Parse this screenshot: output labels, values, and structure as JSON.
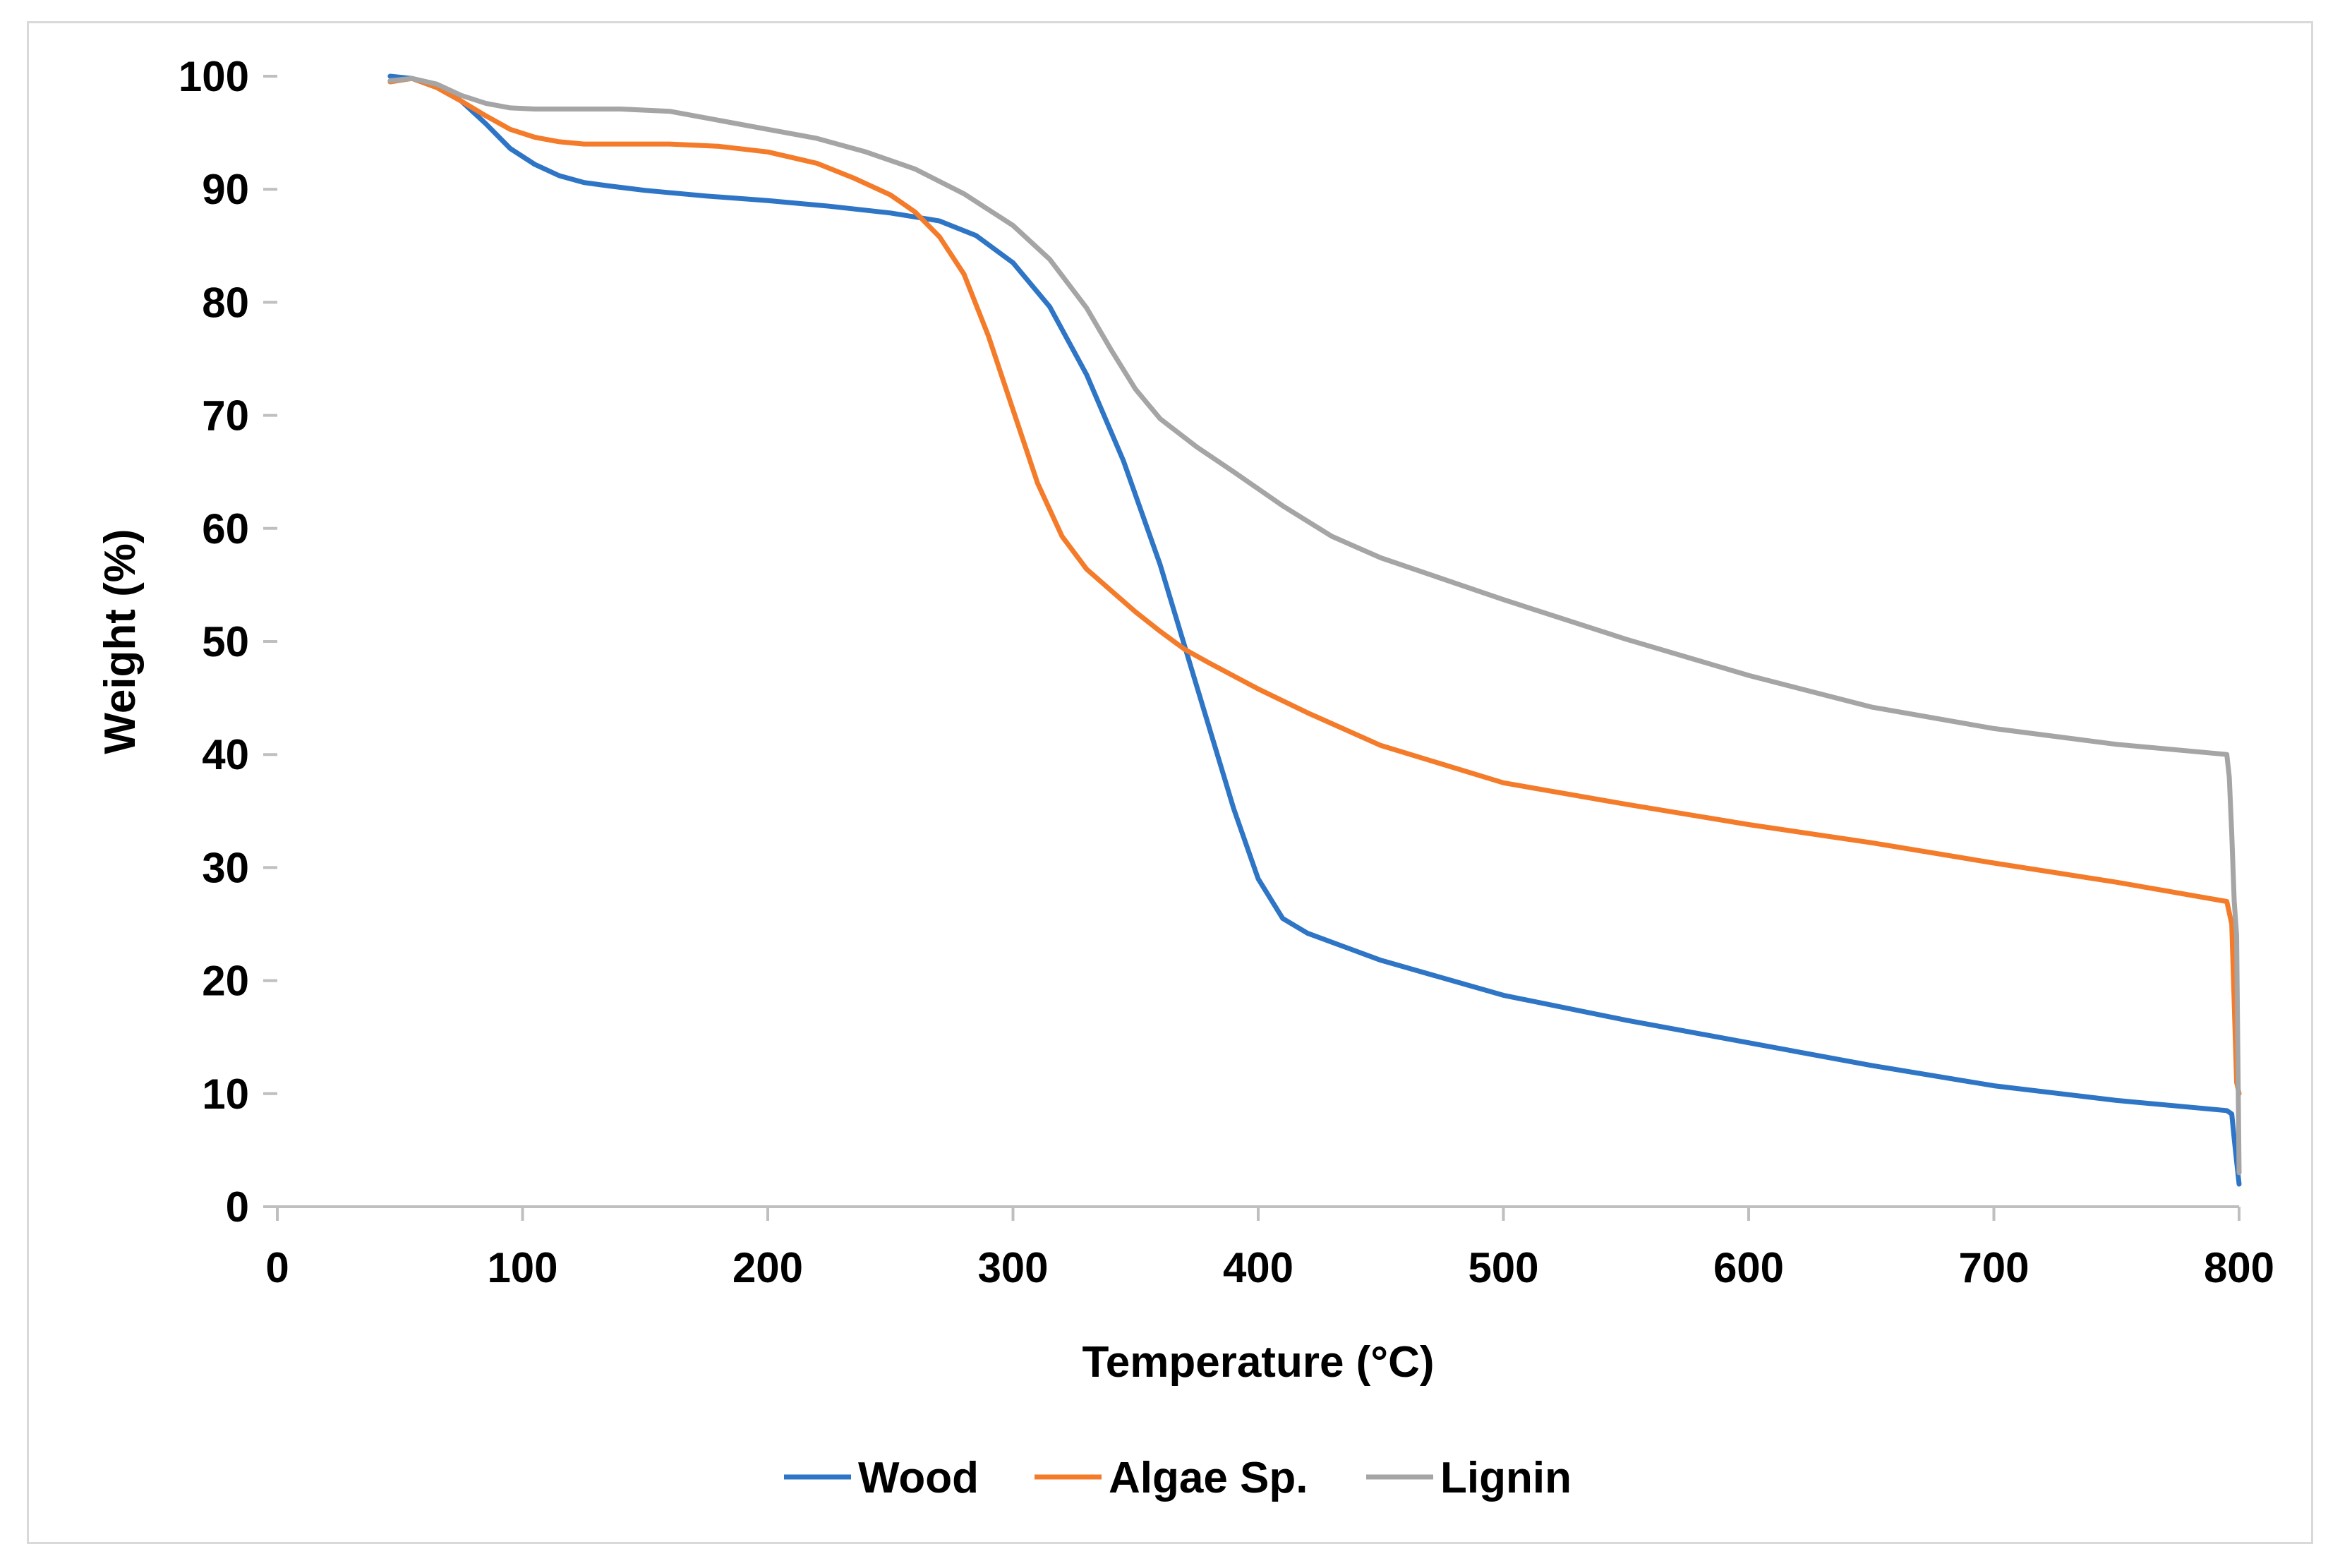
{
  "chart_data": {
    "type": "line",
    "xlabel": "Temperature (°C)",
    "ylabel": "Weight (%)",
    "xlim": [
      0,
      800
    ],
    "ylim": [
      0,
      100
    ],
    "x_ticks": [
      0,
      100,
      200,
      300,
      400,
      500,
      600,
      700,
      800
    ],
    "y_ticks": [
      0,
      10,
      20,
      30,
      40,
      50,
      60,
      70,
      80,
      90,
      100
    ],
    "grid": false,
    "legend_position": "bottom-center",
    "series": [
      {
        "name": "Wood",
        "color": "#2e75c6",
        "x": [
          46,
          55,
          65,
          75,
          85,
          95,
          105,
          115,
          125,
          135,
          150,
          175,
          200,
          225,
          250,
          270,
          285,
          300,
          315,
          330,
          345,
          360,
          375,
          390,
          400,
          410,
          420,
          450,
          500,
          550,
          600,
          650,
          700,
          750,
          795,
          797,
          798,
          799,
          800
        ],
        "y": [
          100,
          99.8,
          99,
          97.8,
          95.8,
          93.6,
          92.2,
          91.2,
          90.6,
          90.3,
          89.9,
          89.4,
          89.0,
          88.5,
          87.9,
          87.2,
          85.9,
          83.5,
          79.6,
          73.6,
          66.0,
          56.8,
          46.0,
          35.2,
          29.0,
          25.5,
          24.2,
          21.8,
          18.7,
          16.5,
          14.5,
          12.5,
          10.7,
          9.4,
          8.5,
          8.2,
          6.0,
          4.0,
          2.0
        ]
      },
      {
        "name": "Algae Sp.",
        "color": "#f47b29",
        "x": [
          46,
          55,
          65,
          75,
          85,
          95,
          105,
          115,
          125,
          140,
          160,
          180,
          200,
          220,
          235,
          250,
          260,
          270,
          280,
          290,
          300,
          310,
          320,
          330,
          340,
          350,
          360,
          370,
          380,
          400,
          420,
          450,
          500,
          550,
          600,
          650,
          700,
          750,
          795,
          797,
          798,
          799,
          800
        ],
        "y": [
          99.5,
          99.8,
          99.0,
          97.8,
          96.5,
          95.3,
          94.6,
          94.2,
          94.0,
          94.0,
          94.0,
          93.8,
          93.3,
          92.3,
          91.0,
          89.5,
          88.0,
          85.8,
          82.5,
          77.0,
          70.5,
          64.0,
          59.3,
          56.4,
          54.5,
          52.6,
          50.9,
          49.3,
          48.1,
          45.8,
          43.7,
          40.8,
          37.5,
          35.6,
          33.8,
          32.2,
          30.4,
          28.7,
          27.0,
          25.0,
          18.0,
          11.0,
          10.0
        ]
      },
      {
        "name": "Lignin",
        "color": "#a5a5a5",
        "x": [
          46,
          55,
          65,
          75,
          85,
          95,
          105,
          120,
          140,
          160,
          180,
          200,
          220,
          240,
          260,
          280,
          300,
          315,
          330,
          340,
          350,
          360,
          375,
          390,
          410,
          430,
          450,
          500,
          550,
          600,
          650,
          700,
          750,
          795,
          796,
          797,
          798,
          799,
          800
        ],
        "y": [
          99.6,
          99.8,
          99.3,
          98.3,
          97.6,
          97.2,
          97.1,
          97.1,
          97.1,
          96.9,
          96.1,
          95.3,
          94.5,
          93.3,
          91.8,
          89.6,
          86.8,
          83.8,
          79.5,
          75.8,
          72.3,
          69.7,
          67.2,
          65.0,
          62.0,
          59.3,
          57.4,
          53.7,
          50.2,
          47.0,
          44.2,
          42.3,
          40.9,
          40.0,
          38.0,
          33.0,
          27.0,
          24.0,
          3.0
        ]
      }
    ]
  }
}
